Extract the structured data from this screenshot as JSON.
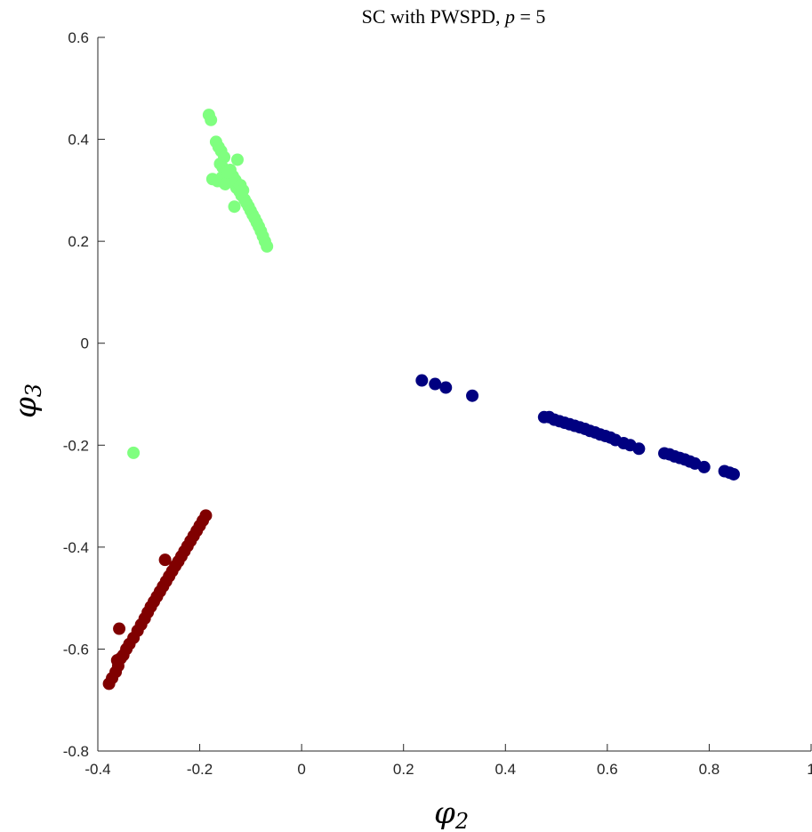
{
  "chart_data": {
    "type": "scatter",
    "title": "SC with PWSPD, p = 5",
    "title_prefix": "SC with PWSPD, ",
    "title_var": "p",
    "title_suffix": " = 5",
    "xlabel": "φ2",
    "xlabel_symbol": "φ",
    "xlabel_sub": "2",
    "ylabel": "φ3",
    "ylabel_symbol": "φ",
    "ylabel_sub": "3",
    "xlim": [
      -0.4,
      1
    ],
    "ylim": [
      -0.8,
      0.6
    ],
    "xticks": [
      "-0.4",
      "-0.2",
      "0",
      "0.2",
      "0.4",
      "0.6",
      "0.8",
      "1"
    ],
    "yticks": [
      "0.6",
      "0.4",
      "0.2",
      "0",
      "-0.2",
      "-0.4",
      "-0.6",
      "-0.8"
    ],
    "grid": false,
    "series": [
      {
        "color": "#7fff7f",
        "points": [
          [
            -0.182,
            0.448
          ],
          [
            -0.178,
            0.438
          ],
          [
            -0.168,
            0.395
          ],
          [
            -0.163,
            0.385
          ],
          [
            -0.158,
            0.377
          ],
          [
            -0.152,
            0.365
          ],
          [
            -0.16,
            0.352
          ],
          [
            -0.155,
            0.345
          ],
          [
            -0.148,
            0.338
          ],
          [
            -0.142,
            0.33
          ],
          [
            -0.138,
            0.322
          ],
          [
            -0.132,
            0.315
          ],
          [
            -0.126,
            0.36
          ],
          [
            -0.128,
            0.305
          ],
          [
            -0.122,
            0.298
          ],
          [
            -0.118,
            0.29
          ],
          [
            -0.112,
            0.282
          ],
          [
            -0.108,
            0.275
          ],
          [
            -0.104,
            0.268
          ],
          [
            -0.1,
            0.26
          ],
          [
            -0.096,
            0.252
          ],
          [
            -0.092,
            0.245
          ],
          [
            -0.088,
            0.237
          ],
          [
            -0.084,
            0.229
          ],
          [
            -0.08,
            0.22
          ],
          [
            -0.076,
            0.21
          ],
          [
            -0.072,
            0.2
          ],
          [
            -0.068,
            0.19
          ],
          [
            -0.175,
            0.322
          ],
          [
            -0.165,
            0.318
          ],
          [
            -0.157,
            0.325
          ],
          [
            -0.14,
            0.34
          ],
          [
            -0.135,
            0.328
          ],
          [
            -0.13,
            0.32
          ],
          [
            -0.12,
            0.31
          ],
          [
            -0.115,
            0.3
          ],
          [
            -0.132,
            0.268
          ],
          [
            -0.145,
            0.335
          ],
          [
            -0.15,
            0.312
          ],
          [
            -0.33,
            -0.215
          ]
        ]
      },
      {
        "color": "#000080",
        "points": [
          [
            0.236,
            -0.073
          ],
          [
            0.262,
            -0.08
          ],
          [
            0.283,
            -0.087
          ],
          [
            0.335,
            -0.103
          ],
          [
            0.476,
            -0.145
          ],
          [
            0.486,
            -0.145
          ],
          [
            0.496,
            -0.15
          ],
          [
            0.506,
            -0.153
          ],
          [
            0.516,
            -0.156
          ],
          [
            0.526,
            -0.159
          ],
          [
            0.536,
            -0.162
          ],
          [
            0.546,
            -0.165
          ],
          [
            0.556,
            -0.168
          ],
          [
            0.566,
            -0.172
          ],
          [
            0.576,
            -0.175
          ],
          [
            0.586,
            -0.179
          ],
          [
            0.596,
            -0.182
          ],
          [
            0.606,
            -0.185
          ],
          [
            0.616,
            -0.19
          ],
          [
            0.632,
            -0.196
          ],
          [
            0.645,
            -0.2
          ],
          [
            0.662,
            -0.207
          ],
          [
            0.712,
            -0.216
          ],
          [
            0.722,
            -0.218
          ],
          [
            0.732,
            -0.222
          ],
          [
            0.742,
            -0.225
          ],
          [
            0.752,
            -0.228
          ],
          [
            0.762,
            -0.232
          ],
          [
            0.772,
            -0.236
          ],
          [
            0.79,
            -0.243
          ],
          [
            0.83,
            -0.251
          ],
          [
            0.84,
            -0.254
          ],
          [
            0.848,
            -0.257
          ]
        ]
      },
      {
        "color": "#800000",
        "points": [
          [
            -0.378,
            -0.668
          ],
          [
            -0.372,
            -0.657
          ],
          [
            -0.365,
            -0.645
          ],
          [
            -0.36,
            -0.633
          ],
          [
            -0.362,
            -0.622
          ],
          [
            -0.355,
            -0.618
          ],
          [
            -0.358,
            -0.56
          ],
          [
            -0.35,
            -0.612
          ],
          [
            -0.344,
            -0.6
          ],
          [
            -0.338,
            -0.59
          ],
          [
            -0.33,
            -0.578
          ],
          [
            -0.322,
            -0.564
          ],
          [
            -0.315,
            -0.552
          ],
          [
            -0.308,
            -0.54
          ],
          [
            -0.302,
            -0.528
          ],
          [
            -0.296,
            -0.517
          ],
          [
            -0.29,
            -0.507
          ],
          [
            -0.284,
            -0.497
          ],
          [
            -0.278,
            -0.487
          ],
          [
            -0.272,
            -0.477
          ],
          [
            -0.266,
            -0.467
          ],
          [
            -0.26,
            -0.457
          ],
          [
            -0.254,
            -0.447
          ],
          [
            -0.248,
            -0.437
          ],
          [
            -0.242,
            -0.428
          ],
          [
            -0.268,
            -0.425
          ],
          [
            -0.236,
            -0.418
          ],
          [
            -0.23,
            -0.408
          ],
          [
            -0.224,
            -0.398
          ],
          [
            -0.218,
            -0.388
          ],
          [
            -0.212,
            -0.378
          ],
          [
            -0.206,
            -0.368
          ],
          [
            -0.2,
            -0.358
          ],
          [
            -0.194,
            -0.348
          ],
          [
            -0.188,
            -0.338
          ]
        ]
      }
    ]
  }
}
